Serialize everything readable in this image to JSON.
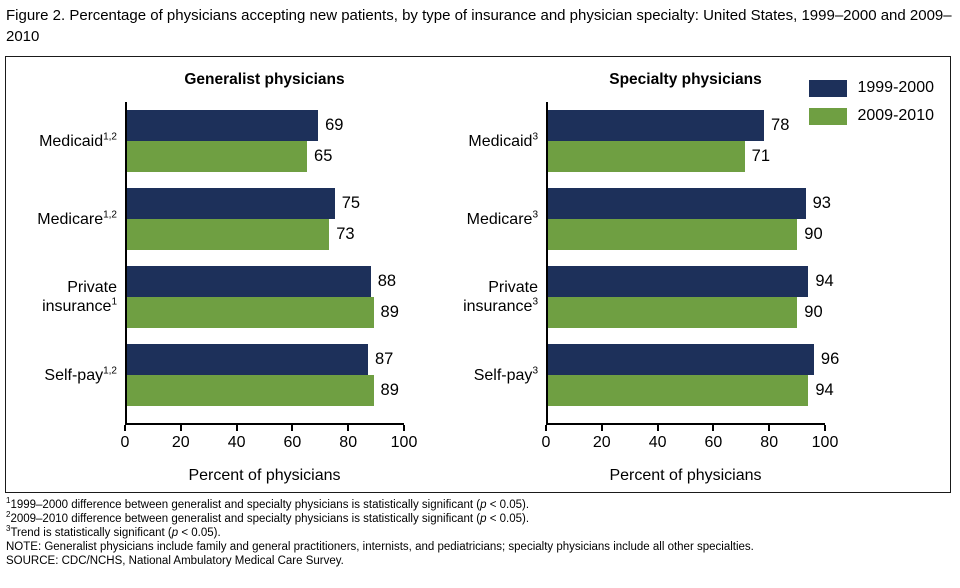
{
  "title": "Figure 2. Percentage of physicians accepting new patients, by type of insurance and physician specialty: United States, 1999–2000 and 2009–2010",
  "legend": [
    {
      "label": "1999-2000",
      "color": "#1d305a"
    },
    {
      "label": "2009-2010",
      "color": "#6f9f42"
    }
  ],
  "axis": {
    "max": 100,
    "ticks": [
      0,
      20,
      40,
      60,
      80,
      100
    ],
    "label": "Percent of physicians"
  },
  "chart_data": [
    {
      "type": "bar",
      "orientation": "horizontal",
      "title": "Generalist physicians",
      "xlabel": "Percent of physicians",
      "xlim": [
        0,
        100
      ],
      "categories": [
        {
          "label": "Medicaid",
          "superscript": "1,2"
        },
        {
          "label": "Medicare",
          "superscript": "1,2"
        },
        {
          "label": "Private insurance",
          "superscript": "1"
        },
        {
          "label": "Self-pay",
          "superscript": "1,2"
        }
      ],
      "series": [
        {
          "name": "1999-2000",
          "values": [
            69,
            75,
            88,
            87
          ]
        },
        {
          "name": "2009-2010",
          "values": [
            65,
            73,
            89,
            89
          ]
        }
      ]
    },
    {
      "type": "bar",
      "orientation": "horizontal",
      "title": "Specialty physicians",
      "xlabel": "Percent of physicians",
      "xlim": [
        0,
        100
      ],
      "categories": [
        {
          "label": "Medicaid",
          "superscript": "3"
        },
        {
          "label": "Medicare",
          "superscript": "3"
        },
        {
          "label": "Private insurance",
          "superscript": "3"
        },
        {
          "label": "Self-pay",
          "superscript": "3"
        }
      ],
      "series": [
        {
          "name": "1999-2000",
          "values": [
            78,
            93,
            94,
            96
          ]
        },
        {
          "name": "2009-2010",
          "values": [
            71,
            90,
            90,
            94
          ]
        }
      ]
    }
  ],
  "footnotes": [
    {
      "marker": "1",
      "text": "1999–2000 difference between generalist and specialty physicians is statistically significant (p < 0.05)."
    },
    {
      "marker": "2",
      "text": "2009–2010 difference between generalist and specialty physicians is statistically significant (p < 0.05)."
    },
    {
      "marker": "3",
      "text": "Trend is statistically significant (p < 0.05)."
    },
    {
      "marker": "",
      "text": "NOTE: Generalist physicians include family and general practitioners, internists, and pediatricians; specialty physicians include all other specialties."
    },
    {
      "marker": "",
      "text": "SOURCE: CDC/NCHS, National Ambulatory Medical Care Survey."
    }
  ]
}
